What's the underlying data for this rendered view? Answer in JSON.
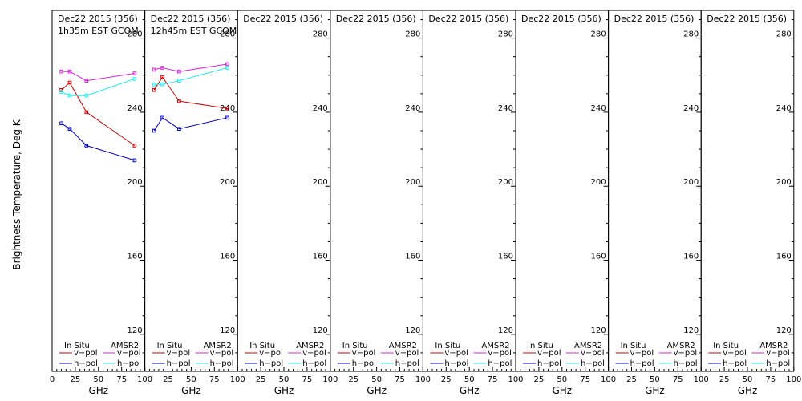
{
  "chart_data": {
    "type": "line",
    "ylabel": "Brightness Temperature, Deg K",
    "xlabel": "GHz",
    "xlim": [
      0,
      100
    ],
    "ylim": [
      100,
      295
    ],
    "y_ticks": [
      120,
      160,
      200,
      240,
      280
    ],
    "x_ticks": [
      "0",
      "25",
      "50",
      "75",
      "100"
    ],
    "legend": {
      "left_title": "In Situ",
      "right_title": "AMSR2",
      "vpol": "v−pol",
      "hpol": "h−pol"
    },
    "colors": {
      "insitu_v": "#cc0000",
      "insitu_h": "#0000cc",
      "amsr2_v": "#dd22dd",
      "amsr2_h": "#22eeee"
    },
    "panels": [
      {
        "header1": "Dec22 2015 (356)",
        "header2": "1h35m EST GCOM",
        "series": [
          {
            "name": "In Situ v-pol",
            "key": "insitu_v",
            "x": [
              10,
              19,
              37,
              89
            ],
            "y": [
              252,
              256,
              240,
              222
            ]
          },
          {
            "name": "In Situ h-pol",
            "key": "insitu_h",
            "x": [
              10,
              19,
              37,
              89
            ],
            "y": [
              234,
              231,
              222,
              214
            ]
          },
          {
            "name": "AMSR2 v-pol",
            "key": "amsr2_v",
            "x": [
              10,
              19,
              37,
              89
            ],
            "y": [
              262,
              262,
              257,
              261
            ]
          },
          {
            "name": "AMSR2 h-pol",
            "key": "amsr2_h",
            "x": [
              10,
              19,
              37,
              89
            ],
            "y": [
              251,
              249,
              249,
              258
            ]
          }
        ]
      },
      {
        "header1": "Dec22 2015 (356)",
        "header2": "12h45m EST GCOM",
        "series": [
          {
            "name": "In Situ v-pol",
            "key": "insitu_v",
            "x": [
              10,
              19,
              37,
              89
            ],
            "y": [
              252,
              259,
              246,
              242
            ]
          },
          {
            "name": "In Situ h-pol",
            "key": "insitu_h",
            "x": [
              10,
              19,
              37,
              89
            ],
            "y": [
              230,
              237,
              231,
              237
            ]
          },
          {
            "name": "AMSR2 v-pol",
            "key": "amsr2_v",
            "x": [
              10,
              19,
              37,
              89
            ],
            "y": [
              263,
              264,
              262,
              266
            ]
          },
          {
            "name": "AMSR2 h-pol",
            "key": "amsr2_h",
            "x": [
              10,
              19,
              37,
              89
            ],
            "y": [
              255,
              255,
              257,
              264
            ]
          }
        ]
      },
      {
        "header1": "Dec22 2015 (356)",
        "header2": "",
        "series": []
      },
      {
        "header1": "Dec22 2015 (356)",
        "header2": "",
        "series": []
      },
      {
        "header1": "Dec22 2015 (356)",
        "header2": "",
        "series": []
      },
      {
        "header1": "Dec22 2015 (356)",
        "header2": "",
        "series": []
      },
      {
        "header1": "Dec22 2015 (356)",
        "header2": "",
        "series": []
      },
      {
        "header1": "Dec22 2015 (356)",
        "header2": "",
        "series": []
      }
    ]
  }
}
